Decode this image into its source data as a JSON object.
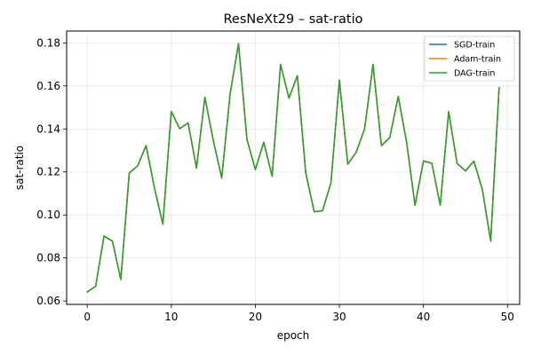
{
  "chart_data": {
    "type": "line",
    "title": "ResNeXt29 – sat-ratio",
    "xlabel": "epoch",
    "ylabel": "sat-ratio",
    "xlim": [
      -2.45,
      51.45
    ],
    "ylim": [
      0.0584,
      0.1855
    ],
    "xticks": [
      0,
      10,
      20,
      30,
      40,
      50
    ],
    "yticks": [
      0.06,
      0.08,
      0.1,
      0.12,
      0.14,
      0.16,
      0.18
    ],
    "xtick_labels": [
      "0",
      "10",
      "20",
      "30",
      "40",
      "50"
    ],
    "ytick_labels": [
      "0.06",
      "0.08",
      "0.10",
      "0.12",
      "0.14",
      "0.16",
      "0.18"
    ],
    "grid": true,
    "legend_position": "top-right",
    "x": [
      0,
      1,
      2,
      3,
      4,
      5,
      6,
      7,
      8,
      9,
      10,
      11,
      12,
      13,
      14,
      15,
      16,
      17,
      18,
      19,
      20,
      21,
      22,
      23,
      24,
      25,
      26,
      27,
      28,
      29,
      30,
      31,
      32,
      33,
      34,
      35,
      36,
      37,
      38,
      39,
      40,
      41,
      42,
      43,
      44,
      45,
      46,
      47,
      48,
      49
    ],
    "series": [
      {
        "name": "SGD-train",
        "color": "#1f77b4",
        "values": [
          0.0642,
          0.0668,
          0.0902,
          0.0878,
          0.07,
          0.1195,
          0.1228,
          0.1323,
          0.1125,
          0.0957,
          0.1481,
          0.1401,
          0.1428,
          0.1218,
          0.1547,
          0.1346,
          0.1172,
          0.1563,
          0.1797,
          0.1352,
          0.1211,
          0.1338,
          0.118,
          0.17,
          0.1543,
          0.1648,
          0.1195,
          0.1015,
          0.102,
          0.115,
          0.1627,
          0.1236,
          0.1292,
          0.14,
          0.17,
          0.1322,
          0.136,
          0.1551,
          0.1337,
          0.1045,
          0.1251,
          0.124,
          0.1045,
          0.148,
          0.124,
          0.1205,
          0.125,
          0.112,
          0.0878,
          0.1592
        ]
      },
      {
        "name": "Adam-train",
        "color": "#ff7f0e",
        "values": [
          0.0642,
          0.0668,
          0.0902,
          0.0878,
          0.07,
          0.1195,
          0.1228,
          0.1323,
          0.1125,
          0.0957,
          0.1481,
          0.1401,
          0.1428,
          0.1218,
          0.1547,
          0.1346,
          0.1172,
          0.1563,
          0.1797,
          0.1352,
          0.1211,
          0.1338,
          0.118,
          0.17,
          0.1543,
          0.1648,
          0.1195,
          0.1015,
          0.102,
          0.115,
          0.1627,
          0.1236,
          0.1292,
          0.14,
          0.17,
          0.1322,
          0.136,
          0.1551,
          0.1337,
          0.1045,
          0.1251,
          0.124,
          0.1045,
          0.148,
          0.124,
          0.1205,
          0.125,
          0.112,
          0.0878,
          0.1592
        ]
      },
      {
        "name": "DAG-train",
        "color": "#2ca02c",
        "values": [
          0.0642,
          0.0668,
          0.0902,
          0.0878,
          0.07,
          0.1195,
          0.1228,
          0.1323,
          0.1125,
          0.0957,
          0.1481,
          0.1401,
          0.1428,
          0.1218,
          0.1547,
          0.1346,
          0.1172,
          0.1563,
          0.1797,
          0.1352,
          0.1211,
          0.1338,
          0.118,
          0.17,
          0.1543,
          0.1648,
          0.1195,
          0.1015,
          0.102,
          0.115,
          0.1627,
          0.1236,
          0.1292,
          0.14,
          0.17,
          0.1322,
          0.136,
          0.1551,
          0.1337,
          0.1045,
          0.1251,
          0.124,
          0.1045,
          0.148,
          0.124,
          0.1205,
          0.125,
          0.112,
          0.0878,
          0.1592
        ]
      }
    ]
  }
}
